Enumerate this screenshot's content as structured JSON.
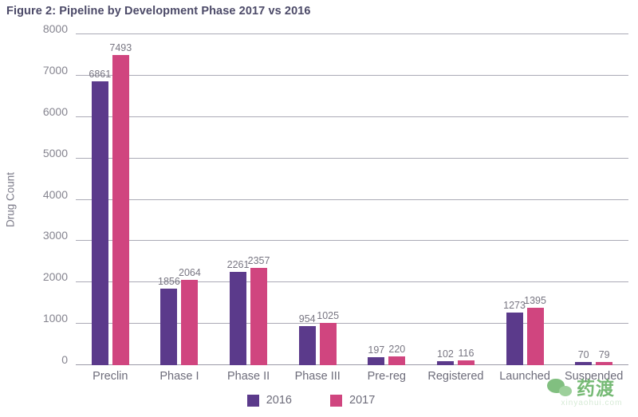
{
  "title": "Figure 2: Pipeline by Development Phase 2017 vs 2016",
  "chart_data": {
    "type": "bar",
    "title": "Figure 2: Pipeline by Development Phase 2017 vs 2016",
    "categories": [
      "Preclin",
      "Phase I",
      "Phase II",
      "Phase III",
      "Pre-reg",
      "Registered",
      "Launched",
      "Suspended"
    ],
    "series": [
      {
        "name": "2016",
        "color": "#5b3a8b",
        "values": [
          6861,
          1856,
          2261,
          954,
          197,
          102,
          1273,
          70
        ]
      },
      {
        "name": "2017",
        "color": "#d0457f",
        "values": [
          7493,
          2064,
          2357,
          1025,
          220,
          116,
          1395,
          79
        ]
      }
    ],
    "xlabel": "",
    "ylabel": "Drug Count",
    "ylim": [
      0,
      8000
    ],
    "ytick_step": 1000,
    "grid": true,
    "legend_position": "bottom"
  },
  "watermark": {
    "logo_text": "药渡",
    "subtext": "xinyaohui.com",
    "color": "#6cb56a"
  }
}
